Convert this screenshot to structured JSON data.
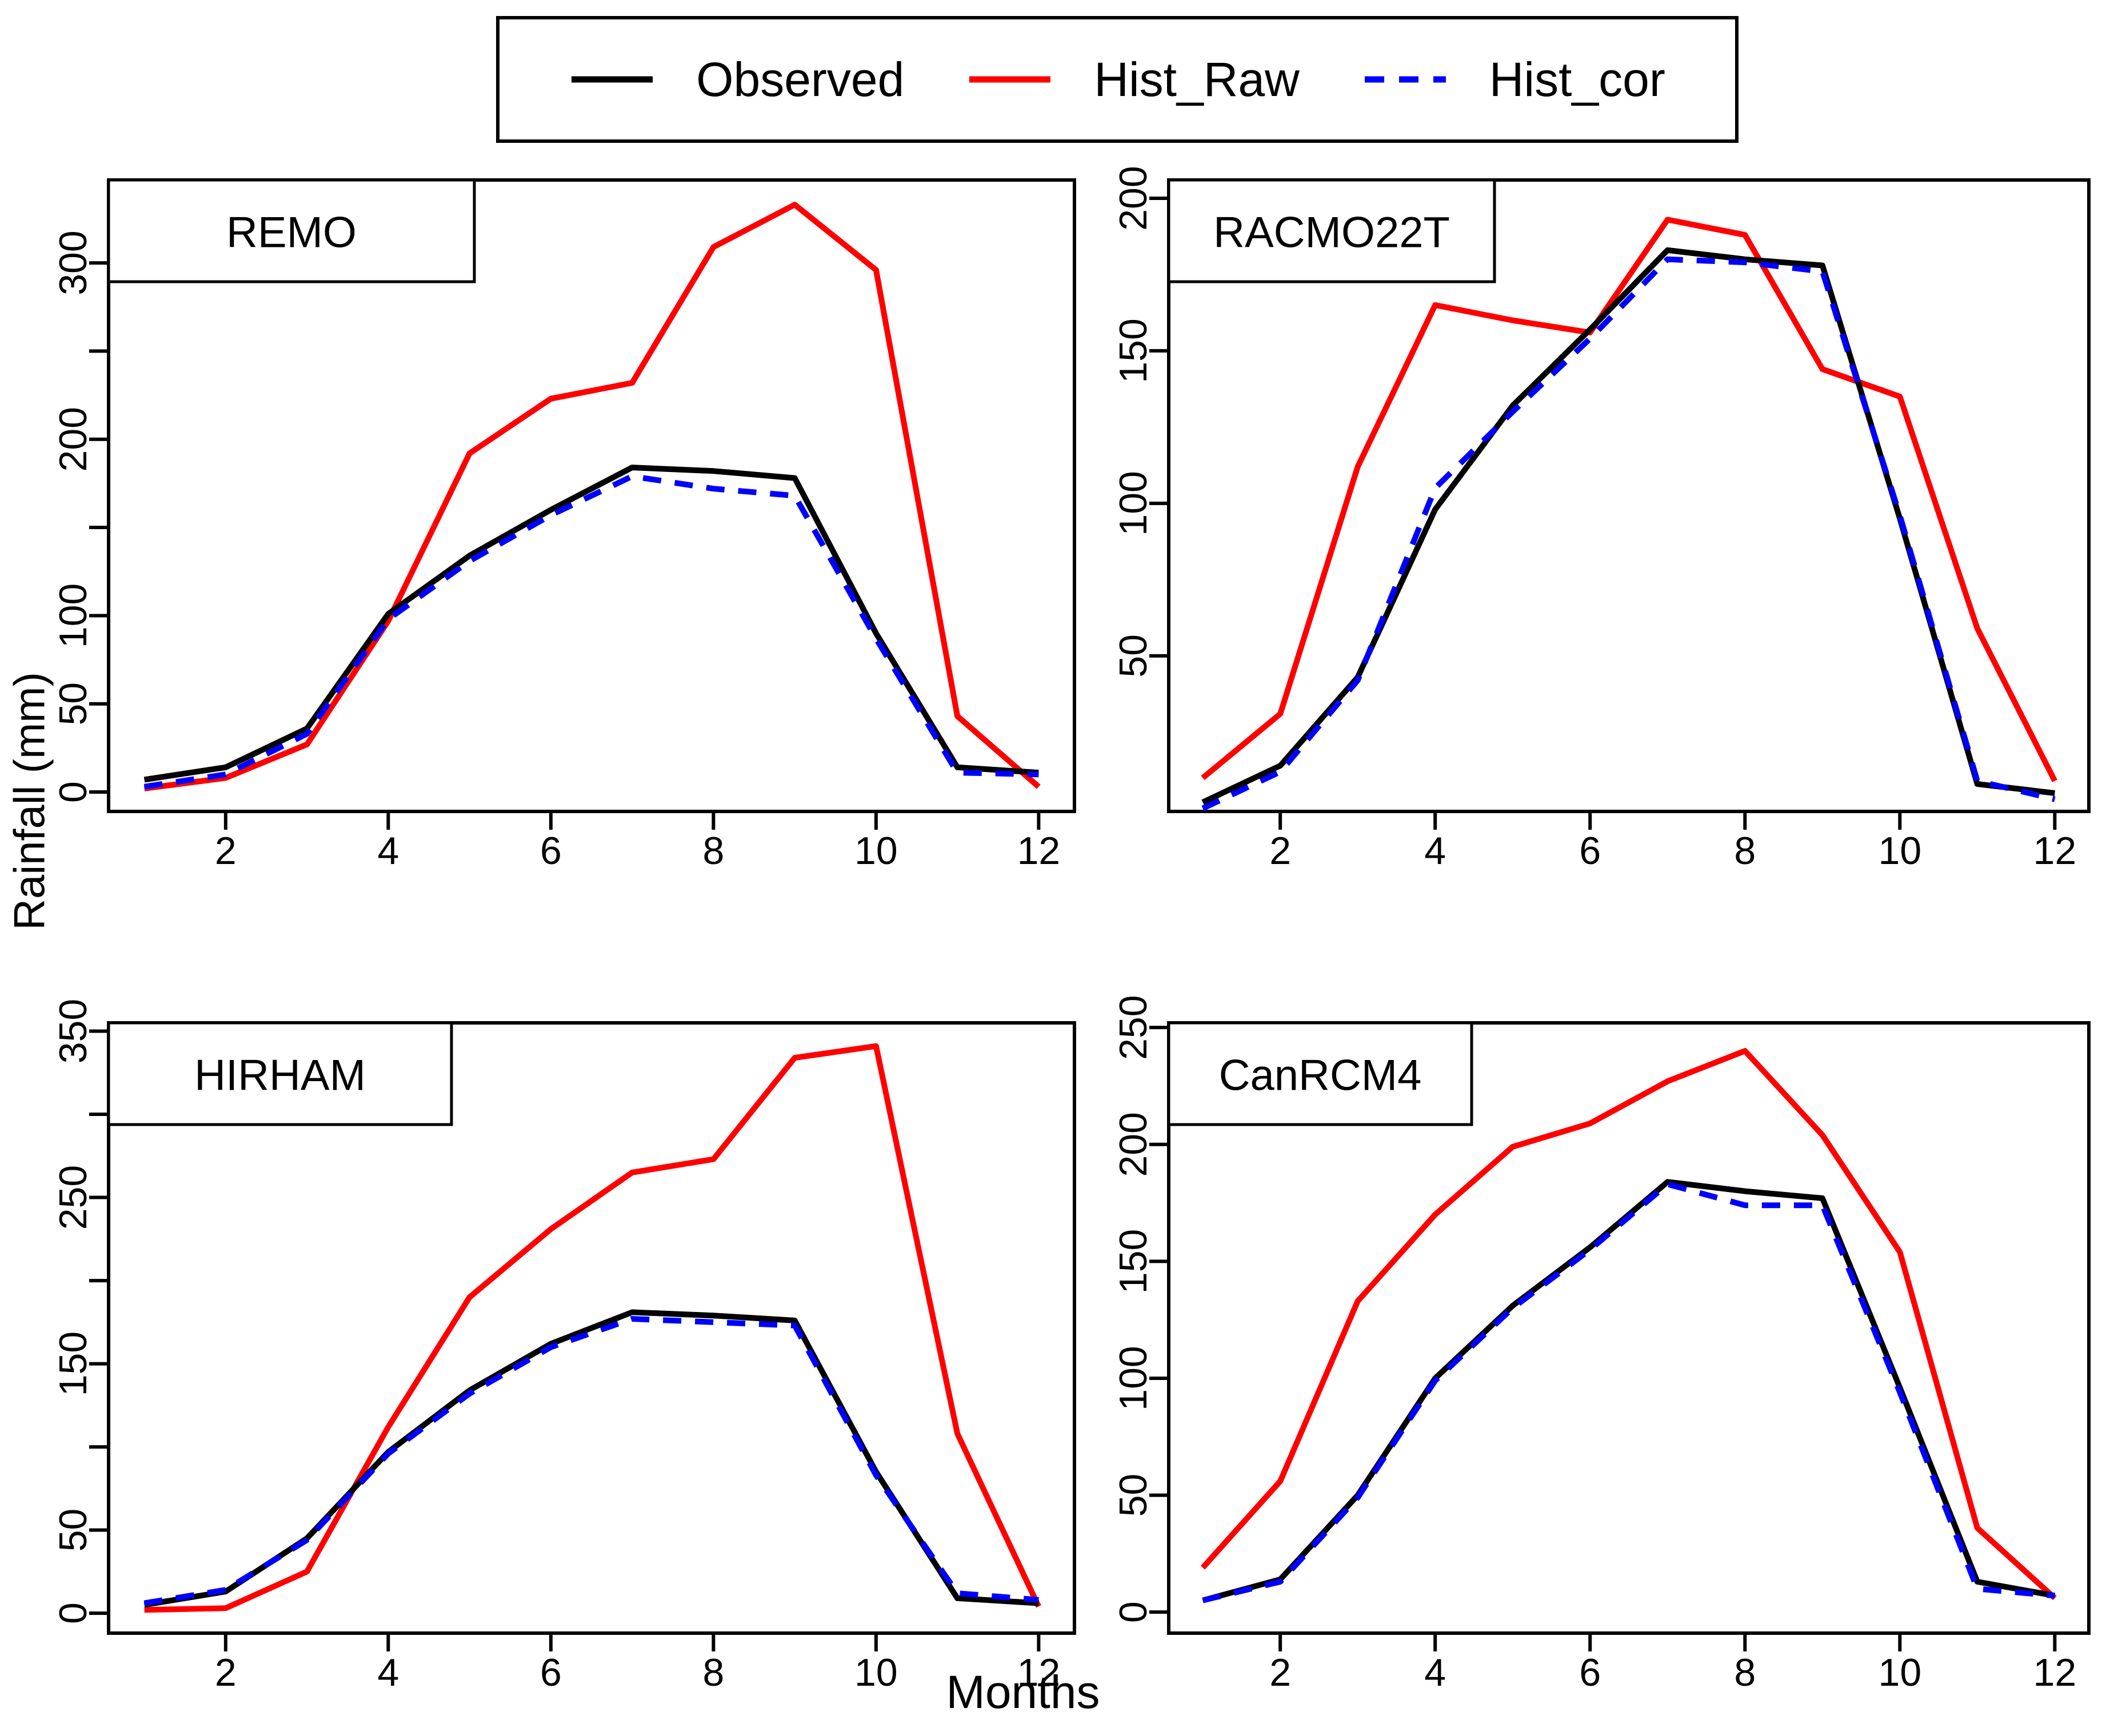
{
  "figure": {
    "xlabel": "Months",
    "ylabel": "Rainfall (mm)",
    "background": "#ffffff"
  },
  "legend": {
    "items": [
      {
        "label": "Observed",
        "color": "#000000",
        "style": "solid"
      },
      {
        "label": "Hist_Raw",
        "color": "#ff0000",
        "style": "solid"
      },
      {
        "label": "Hist_cor",
        "color": "#0000ff",
        "style": "dashed"
      }
    ]
  },
  "chart_data": [
    {
      "type": "line",
      "panel": "REMO",
      "x": [
        1,
        2,
        3,
        4,
        5,
        6,
        7,
        8,
        9,
        10,
        11,
        12
      ],
      "xticks": [
        2,
        4,
        6,
        8,
        10,
        12
      ],
      "xtick_labels": [
        "2",
        "4",
        "6",
        "8",
        "10",
        "12"
      ],
      "yticks": [
        0,
        50,
        100,
        150,
        200,
        250,
        300
      ],
      "ytick_labels": [
        "0",
        "50",
        "100",
        "",
        "200",
        "",
        "300"
      ],
      "ylim": [
        -11,
        347
      ],
      "grid": false,
      "series": [
        {
          "name": "Observed",
          "values": [
            7,
            14,
            36,
            101,
            134,
            160,
            184,
            182,
            178,
            90,
            14,
            11
          ]
        },
        {
          "name": "Hist_Raw",
          "values": [
            2,
            8,
            27,
            97,
            192,
            223,
            232,
            309,
            333,
            296,
            43,
            3
          ]
        },
        {
          "name": "Hist_cor",
          "values": [
            3,
            10,
            33,
            98,
            131,
            157,
            179,
            172,
            168,
            87,
            11,
            10
          ]
        }
      ]
    },
    {
      "type": "line",
      "panel": "RACMO22T",
      "x": [
        1,
        2,
        3,
        4,
        5,
        6,
        7,
        8,
        9,
        10,
        11,
        12
      ],
      "xticks": [
        2,
        4,
        6,
        8,
        10,
        12
      ],
      "xtick_labels": [
        "2",
        "4",
        "6",
        "8",
        "10",
        "12"
      ],
      "yticks": [
        50,
        100,
        150,
        200
      ],
      "ytick_labels": [
        "50",
        "100",
        "150",
        "200"
      ],
      "ylim": [
        -1,
        206
      ],
      "grid": false,
      "series": [
        {
          "name": "Observed",
          "values": [
            2,
            14,
            43,
            98,
            132,
            157,
            183,
            180,
            178,
            95,
            8,
            5
          ]
        },
        {
          "name": "Hist_Raw",
          "values": [
            10,
            31,
            112,
            165,
            160,
            156,
            193,
            188,
            144,
            135,
            59,
            9
          ]
        },
        {
          "name": "Hist_cor",
          "values": [
            0,
            12,
            42,
            105,
            130,
            154,
            180,
            179,
            176,
            96,
            9,
            3
          ]
        }
      ]
    },
    {
      "type": "line",
      "panel": "HIRHAM",
      "x": [
        1,
        2,
        3,
        4,
        5,
        6,
        7,
        8,
        9,
        10,
        11,
        12
      ],
      "xticks": [
        2,
        4,
        6,
        8,
        10,
        12
      ],
      "xtick_labels": [
        "2",
        "4",
        "6",
        "8",
        "10",
        "12"
      ],
      "yticks": [
        0,
        50,
        100,
        150,
        200,
        250,
        300,
        350
      ],
      "ytick_labels": [
        "0",
        "50",
        "",
        "150",
        "",
        "250",
        "",
        "350"
      ],
      "ylim": [
        -12,
        355
      ],
      "grid": false,
      "series": [
        {
          "name": "Observed",
          "values": [
            5,
            13,
            45,
            97,
            134,
            162,
            181,
            179,
            176,
            85,
            9,
            6
          ]
        },
        {
          "name": "Hist_Raw",
          "values": [
            2,
            3,
            25,
            112,
            190,
            231,
            265,
            273,
            334,
            341,
            108,
            4
          ]
        },
        {
          "name": "Hist_cor",
          "values": [
            6,
            14,
            44,
            96,
            132,
            160,
            177,
            175,
            173,
            83,
            12,
            8
          ]
        }
      ]
    },
    {
      "type": "line",
      "panel": "CanRCM4",
      "x": [
        1,
        2,
        3,
        4,
        5,
        6,
        7,
        8,
        9,
        10,
        11,
        12
      ],
      "xticks": [
        2,
        4,
        6,
        8,
        10,
        12
      ],
      "xtick_labels": [
        "2",
        "4",
        "6",
        "8",
        "10",
        "12"
      ],
      "yticks": [
        0,
        50,
        100,
        150,
        200,
        250
      ],
      "ytick_labels": [
        "0",
        "50",
        "100",
        "150",
        "200",
        "250"
      ],
      "ylim": [
        -9,
        252
      ],
      "grid": false,
      "series": [
        {
          "name": "Observed",
          "values": [
            5,
            14,
            50,
            100,
            131,
            156,
            184,
            180,
            177,
            96,
            13,
            7
          ]
        },
        {
          "name": "Hist_Raw",
          "values": [
            19,
            56,
            133,
            170,
            199,
            209,
            227,
            240,
            204,
            154,
            36,
            6
          ]
        },
        {
          "name": "Hist_cor",
          "values": [
            5,
            13,
            49,
            99,
            130,
            155,
            183,
            174,
            174,
            94,
            10,
            7
          ]
        }
      ]
    }
  ]
}
